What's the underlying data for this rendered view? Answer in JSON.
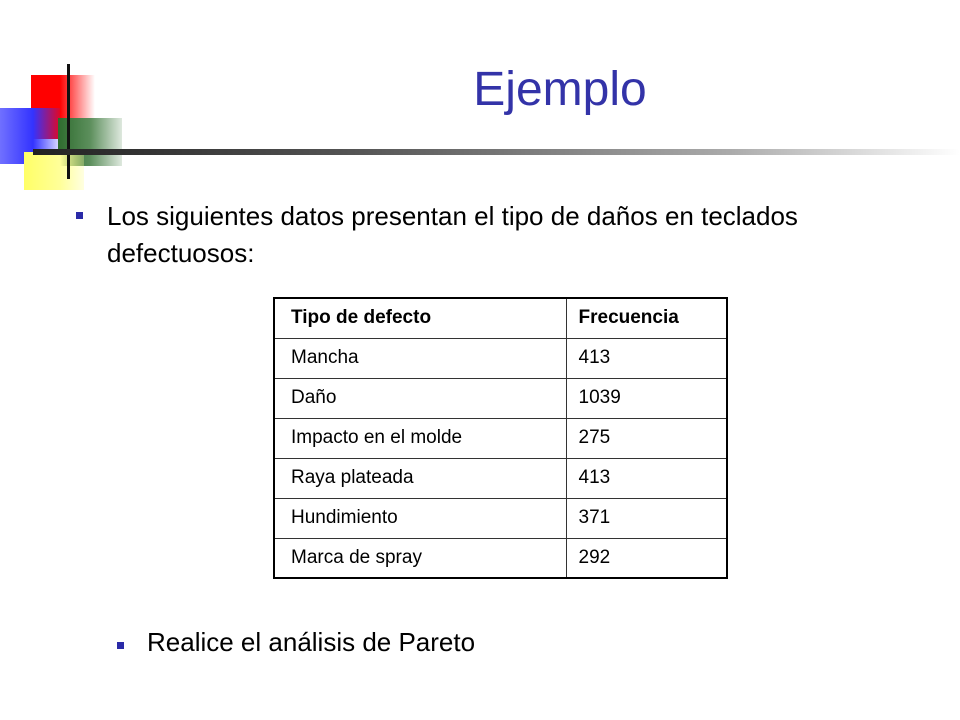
{
  "slide": {
    "title": "Ejemplo",
    "bullets": [
      "Los siguientes datos presentan el tipo de daños en teclados defectuosos:",
      "Realice el análisis de Pareto"
    ],
    "colors": {
      "title": "#3333a8",
      "bullet": "#2a2aa8"
    }
  },
  "table": {
    "headers": [
      "Tipo de defecto",
      "Frecuencia"
    ],
    "rows": [
      [
        "Mancha",
        "413"
      ],
      [
        "Daño",
        "1039"
      ],
      [
        "Impacto en el molde",
        "275"
      ],
      [
        "Raya plateada",
        "413"
      ],
      [
        "Hundimiento",
        "371"
      ],
      [
        "Marca de spray",
        "292"
      ]
    ]
  }
}
